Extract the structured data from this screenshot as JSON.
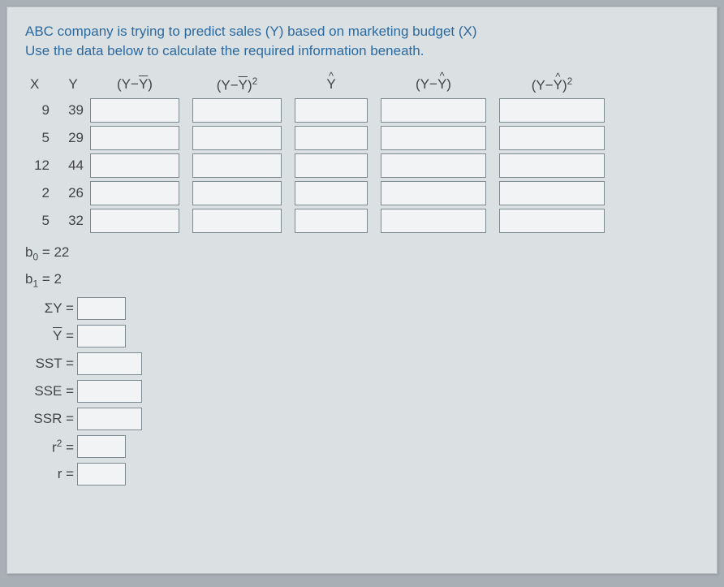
{
  "prompt": {
    "line1": "ABC company is trying to predict sales (Y) based on marketing budget (X)",
    "line2": "Use the data below to calculate the required information beneath."
  },
  "headers": {
    "x": "X",
    "y": "Y",
    "yminusybar": "(Y−Y̅)",
    "yminusybar_sq": "(Y−Y̅)²",
    "yhat": "Ŷ",
    "yminusyhat": "(Y−Ŷ)",
    "yminusyhat_sq": "(Y−Ŷ)²"
  },
  "rows": [
    {
      "x": "9",
      "y": "39"
    },
    {
      "x": "5",
      "y": "29"
    },
    {
      "x": "12",
      "y": "44"
    },
    {
      "x": "2",
      "y": "26"
    },
    {
      "x": "5",
      "y": "32"
    }
  ],
  "coefficients": {
    "b0_label": "b₀ = 22",
    "b1_label": "b₁ = 2"
  },
  "summary": [
    {
      "label": "ΣY =",
      "width": "w60"
    },
    {
      "label": "Y̅ =",
      "width": "w60"
    },
    {
      "label": "SST =",
      "width": "w80"
    },
    {
      "label": "SSE =",
      "width": "w80"
    },
    {
      "label": "SSR =",
      "width": "w80"
    },
    {
      "label": "r² =",
      "width": "w60"
    },
    {
      "label": "r =",
      "width": "w60"
    }
  ]
}
